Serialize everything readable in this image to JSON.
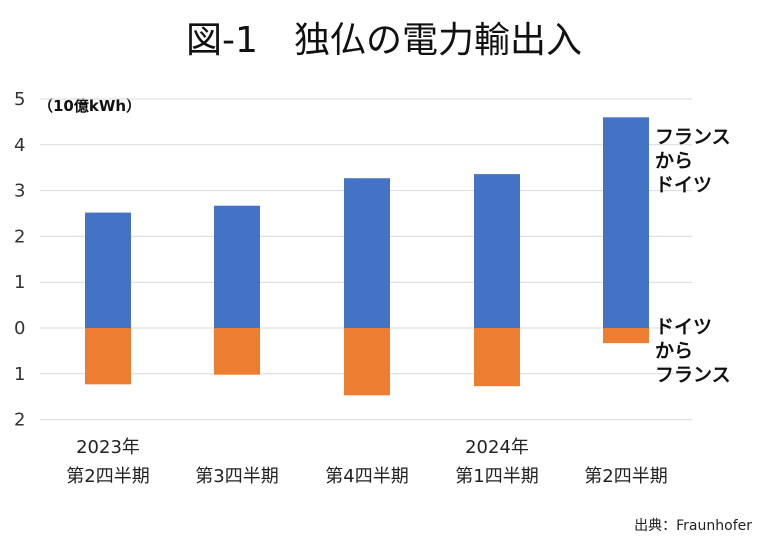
{
  "chart_data": {
    "type": "bar",
    "title": "図-1　独仏の電力輸出入",
    "unit_label": "（10億kWh）",
    "categories": [
      [
        "2023年",
        "第2四半期"
      ],
      [
        "",
        "第3四半期"
      ],
      [
        "",
        "第4四半期"
      ],
      [
        "2024年",
        "第1四半期"
      ],
      [
        "",
        "第2四半期"
      ]
    ],
    "series": [
      {
        "name": "フランスからドイツ",
        "label_lines": [
          "フランス",
          "から",
          "ドイツ"
        ],
        "color": "#4472c4",
        "values": [
          2.52,
          2.67,
          3.27,
          3.36,
          4.6
        ]
      },
      {
        "name": "ドイツからフランス",
        "label_lines": [
          "ドイツ",
          "から",
          "フランス"
        ],
        "color": "#ed7d31",
        "values": [
          -1.23,
          -1.02,
          -1.47,
          -1.27,
          -0.33
        ]
      }
    ],
    "y_ticks": [
      {
        "value": 5,
        "label": "5"
      },
      {
        "value": 4,
        "label": "4"
      },
      {
        "value": 3,
        "label": "3"
      },
      {
        "value": 2,
        "label": "2"
      },
      {
        "value": 1,
        "label": "1"
      },
      {
        "value": 0,
        "label": "0"
      },
      {
        "value": -1,
        "label": "1"
      },
      {
        "value": -2,
        "label": "2"
      }
    ],
    "ylim": [
      -2,
      5
    ],
    "grid": true,
    "legend": "right",
    "source": "出典：Fraunhofer"
  }
}
